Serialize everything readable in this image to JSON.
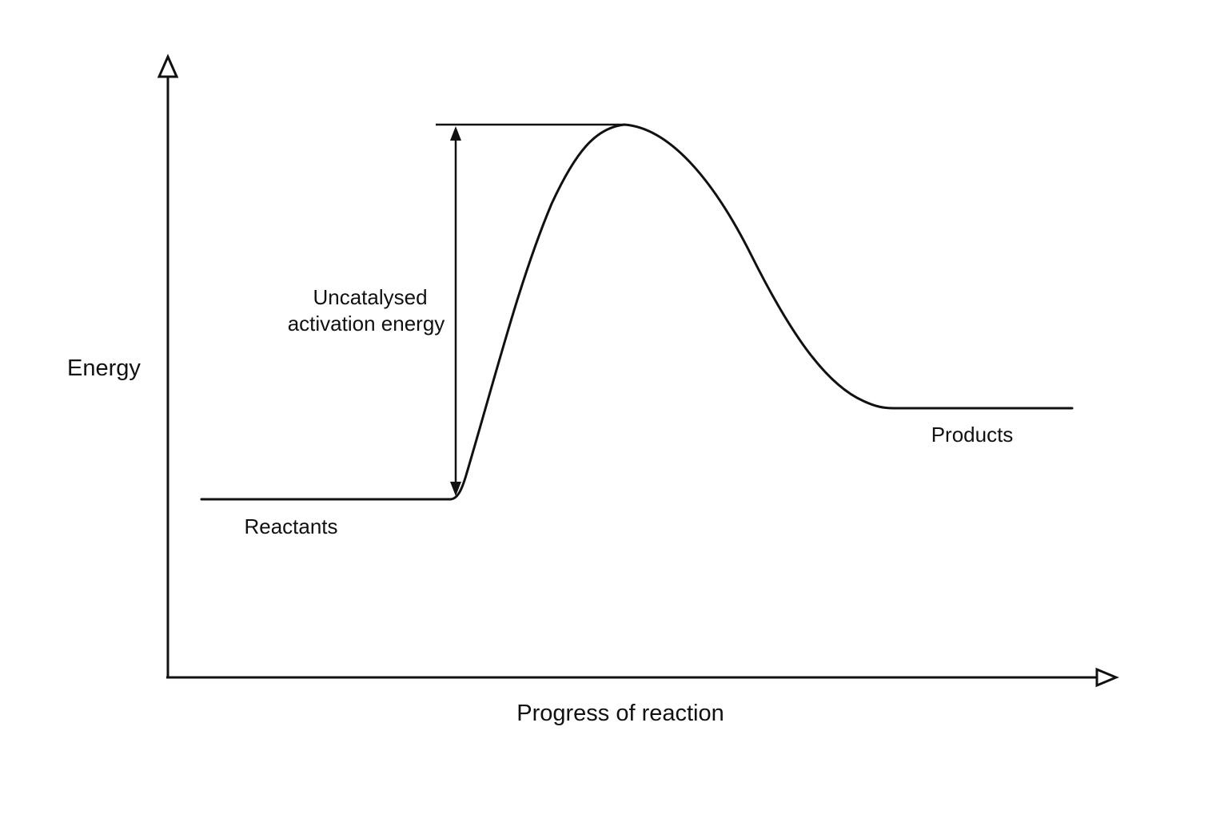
{
  "diagram": {
    "type": "energy-profile",
    "y_axis_label": "Energy",
    "x_axis_label": "Progress of reaction",
    "reactants_label": "Reactants",
    "products_label": "Products",
    "activation_label_line1": "Uncatalysed",
    "activation_label_line2": "activation energy",
    "colors": {
      "background": "#ffffff",
      "stroke": "#111111"
    }
  }
}
